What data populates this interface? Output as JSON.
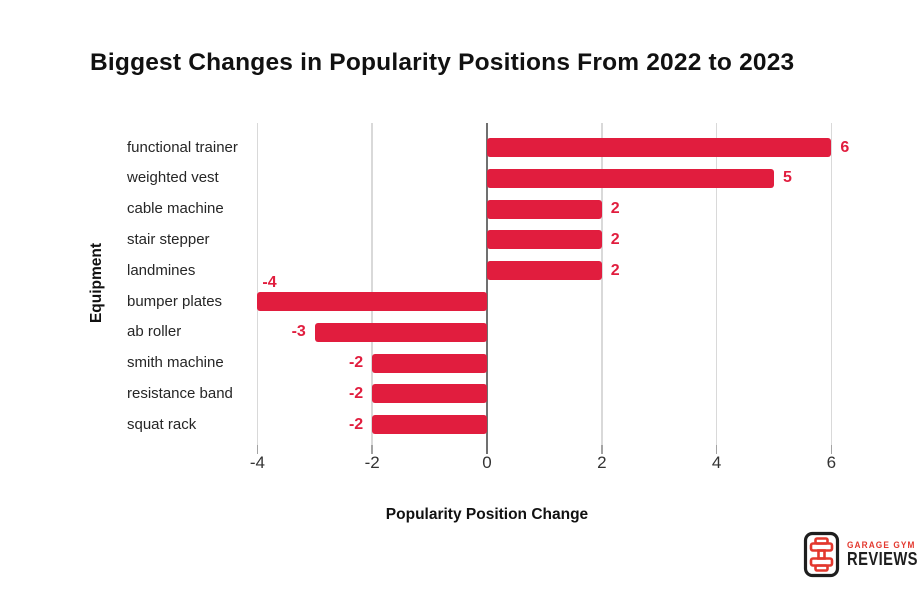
{
  "chart_data": {
    "type": "bar",
    "orientation": "horizontal",
    "title": "Biggest Changes in Popularity Positions From 2022 to 2023",
    "xlabel": "Popularity Position Change",
    "ylabel": "Equipment",
    "categories": [
      "functional trainer",
      "weighted vest",
      "cable machine",
      "stair stepper",
      "landmines",
      "bumper plates",
      "ab roller",
      "smith machine",
      "resistance band",
      "squat rack"
    ],
    "values": [
      6,
      5,
      2,
      2,
      2,
      -4,
      -3,
      -2,
      -2,
      -2
    ],
    "data_labels": [
      "6",
      "5",
      "2",
      "2",
      "2",
      "-4",
      "-3",
      "-2",
      "-2",
      "-2"
    ],
    "x_ticks": [
      -4,
      -2,
      0,
      2,
      4,
      6
    ],
    "x_tick_labels": [
      "-4",
      "-2",
      "0",
      "2",
      "4",
      "6"
    ],
    "xlim": [
      -4.05,
      6.5
    ],
    "grid": "vertical-gridlines-on",
    "legend": "none",
    "colors": {
      "bar": "#E11D3E",
      "data_label": "#E11D3E",
      "gridline": "#D9D9D9",
      "zero_line": "#707070",
      "tick_mark": "#A3A3A3",
      "tick_label": "#333333",
      "category_label": "#262626",
      "title": "#111111",
      "background": "#FFFFFF"
    }
  },
  "logo": {
    "line1": "GARAGE GYM",
    "line2": "REVIEWS",
    "icon": "dumbbell-icon",
    "red": "#E3382E",
    "black": "#1E1E1E"
  }
}
